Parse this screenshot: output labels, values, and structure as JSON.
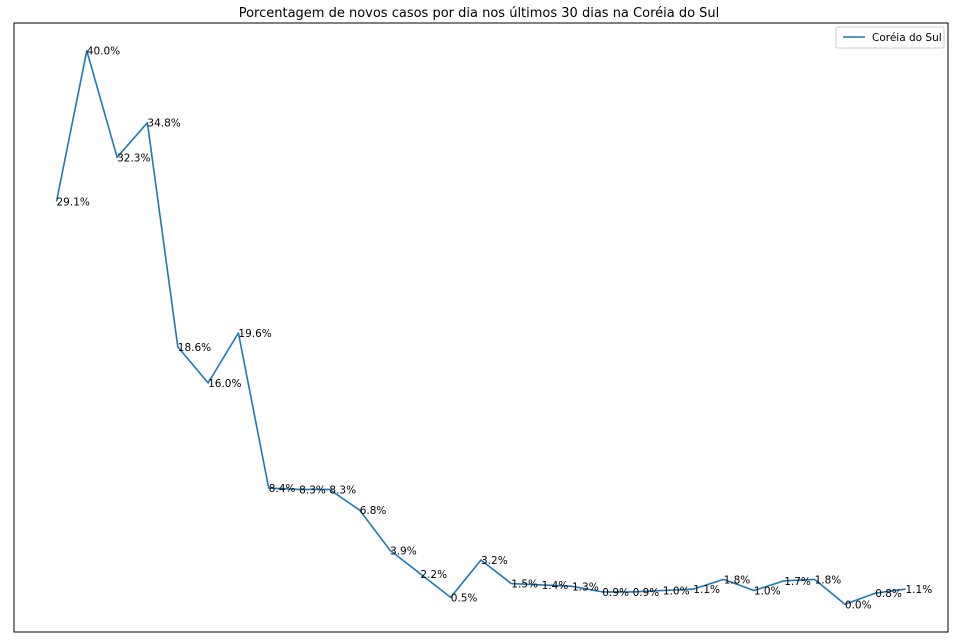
{
  "chart_data": {
    "type": "line",
    "title": "Porcentagem de novos casos por dia nos últimos 30 dias na Coréia do Sul",
    "xlabel": "",
    "ylabel": "",
    "grid": false,
    "axis_ticks_visible": false,
    "legend_position": "top-right",
    "series": [
      {
        "name": "Coréia do Sul",
        "color": "#1f77b4",
        "values": [
          29.1,
          40.0,
          32.3,
          34.8,
          18.6,
          16.0,
          19.6,
          8.4,
          8.3,
          8.3,
          6.8,
          3.9,
          2.2,
          0.5,
          3.2,
          1.5,
          1.4,
          1.3,
          0.9,
          0.9,
          1.0,
          1.1,
          1.8,
          1.0,
          1.7,
          1.8,
          0.0,
          0.8,
          1.1
        ],
        "labels": [
          "29.1%",
          "40.0%",
          "32.3%",
          "34.8%",
          "18.6%",
          "16.0%",
          "19.6%",
          "8.4%",
          "8.3%",
          "8.3%",
          "6.8%",
          "3.9%",
          "2.2%",
          "0.5%",
          "3.2%",
          "1.5%",
          "1.4%",
          "1.3%",
          "0.9%",
          "0.9%",
          "1.0%",
          "1.1%",
          "1.8%",
          "1.0%",
          "1.7%",
          "1.8%",
          "0.0%",
          "0.8%",
          "1.1%"
        ]
      }
    ],
    "ylim": [
      -2.0,
      42.0
    ],
    "xlim": [
      -1.4,
      29.4
    ]
  }
}
